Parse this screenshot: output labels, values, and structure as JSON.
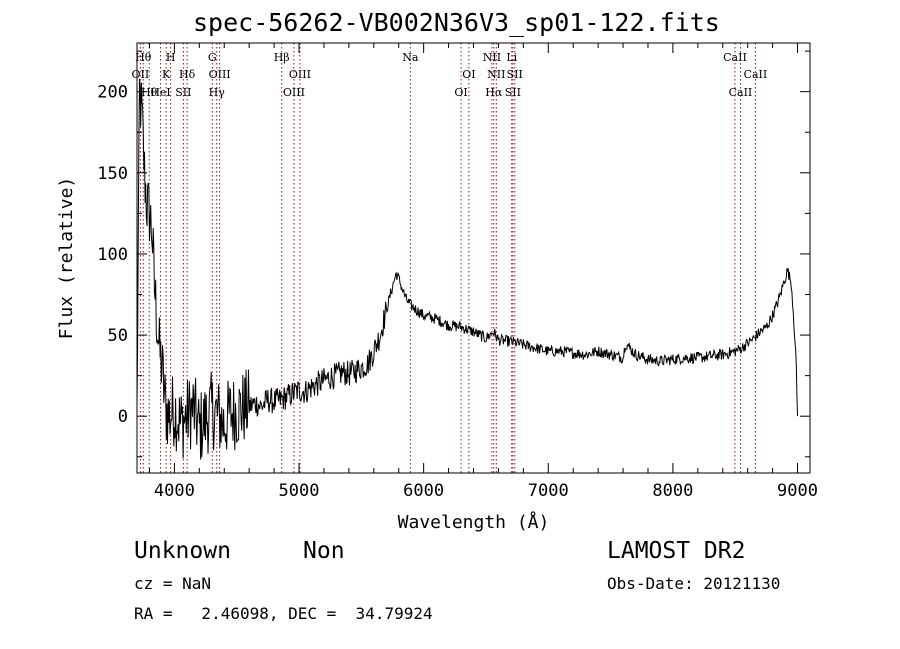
{
  "header": {
    "title": "spec-56262-VB002N36V3_sp01-122.fits"
  },
  "object": {
    "class": "Unknown",
    "subclass": "Non",
    "redshift": "cz = NaN",
    "radec": "RA =   2.46098, DEC =  34.79924"
  },
  "survey": {
    "name": "LAMOST DR2",
    "obs_date": "Obs-Date: 20121130"
  },
  "chart_data": {
    "type": "line",
    "title": "spec-56262-VB002N36V3_sp01-122.fits",
    "xlabel": "Wavelength (Å)",
    "ylabel": "Flux (relative)",
    "xlim": [
      3700,
      9100
    ],
    "ylim": [
      -35,
      230
    ],
    "xticks": [
      4000,
      5000,
      6000,
      7000,
      8000,
      9000
    ],
    "yticks": [
      0,
      50,
      100,
      150,
      200
    ],
    "line_color": "#000000",
    "marker_color": "#8b1a1a",
    "grid": false,
    "series": [
      {
        "x": [
          3700,
          3720,
          3740,
          3760,
          3780,
          3800,
          3820,
          3840,
          3860,
          3880,
          3900,
          3930,
          3960,
          4000,
          4050,
          4100,
          4150,
          4200,
          4250,
          4300,
          4350,
          4400,
          4450,
          4500,
          4550,
          4600,
          4650,
          4700,
          4750,
          4800,
          4850,
          4900,
          4950,
          5000,
          5050,
          5100,
          5150,
          5200,
          5250,
          5300,
          5350,
          5400,
          5450,
          5500,
          5550,
          5600,
          5650,
          5700,
          5750,
          5780,
          5800,
          5830,
          5860,
          5900,
          5950,
          6000,
          6100,
          6200,
          6300,
          6400,
          6500,
          6560,
          6600,
          6700,
          6800,
          6900,
          7000,
          7100,
          7200,
          7300,
          7400,
          7500,
          7600,
          7620,
          7700,
          7800,
          7900,
          8000,
          8100,
          8200,
          8300,
          8400,
          8500,
          8550,
          8600,
          8650,
          8700,
          8750,
          8800,
          8850,
          8900,
          8920,
          8950,
          8970,
          8990,
          9000
        ],
        "y": [
          0,
          200,
          185,
          150,
          130,
          125,
          115,
          80,
          60,
          40,
          30,
          5,
          0,
          5,
          -5,
          0,
          5,
          -8,
          -2,
          4,
          0,
          -5,
          2,
          3,
          5,
          6,
          8,
          6,
          10,
          9,
          10,
          12,
          14,
          16,
          15,
          18,
          20,
          22,
          24,
          25,
          27,
          26,
          28,
          30,
          32,
          40,
          50,
          65,
          80,
          88,
          85,
          78,
          72,
          68,
          65,
          62,
          60,
          56,
          55,
          52,
          48,
          52,
          47,
          46,
          44,
          42,
          40,
          40,
          39,
          38,
          40,
          38,
          36,
          45,
          38,
          35,
          34,
          35,
          36,
          36,
          37,
          38,
          40,
          42,
          45,
          48,
          52,
          55,
          62,
          72,
          85,
          90,
          82,
          60,
          30,
          0
        ]
      }
    ],
    "line_markers": [
      {
        "x": 3727,
        "label": "OII",
        "row": 1
      },
      {
        "x": 3750,
        "label": "Hθ",
        "row": 0
      },
      {
        "x": 3798,
        "label": "Hθ",
        "row": 2
      },
      {
        "x": 3889,
        "label": "HeI",
        "row": 2
      },
      {
        "x": 3934,
        "label": "K",
        "row": 1
      },
      {
        "x": 3970,
        "label": "H",
        "row": 0
      },
      {
        "x": 4072,
        "label": "SII",
        "row": 2
      },
      {
        "x": 4102,
        "label": "Hδ",
        "row": 1
      },
      {
        "x": 4304,
        "label": "G",
        "row": 0
      },
      {
        "x": 4340,
        "label": "Hγ",
        "row": 2
      },
      {
        "x": 4363,
        "label": "OIII",
        "row": 1
      },
      {
        "x": 4861,
        "label": "Hβ",
        "row": 0
      },
      {
        "x": 4959,
        "label": "OIII",
        "row": 2
      },
      {
        "x": 5007,
        "label": "OIII",
        "row": 1
      },
      {
        "x": 5893,
        "label": "Na",
        "row": 0
      },
      {
        "x": 6300,
        "label": "OI",
        "row": 2
      },
      {
        "x": 6363,
        "label": "OI",
        "row": 1
      },
      {
        "x": 6548,
        "label": "NII",
        "row": 0
      },
      {
        "x": 6563,
        "label": "Hα",
        "row": 2
      },
      {
        "x": 6583,
        "label": "NII",
        "row": 1
      },
      {
        "x": 6707,
        "label": "Li",
        "row": 0
      },
      {
        "x": 6716,
        "label": "SII",
        "row": 2
      },
      {
        "x": 6731,
        "label": "SII",
        "row": 1
      },
      {
        "x": 8498,
        "label": "CaII",
        "row": 0
      },
      {
        "x": 8542,
        "label": "CaII",
        "row": 2
      },
      {
        "x": 8662,
        "label": "CaII",
        "row": 1
      }
    ]
  }
}
